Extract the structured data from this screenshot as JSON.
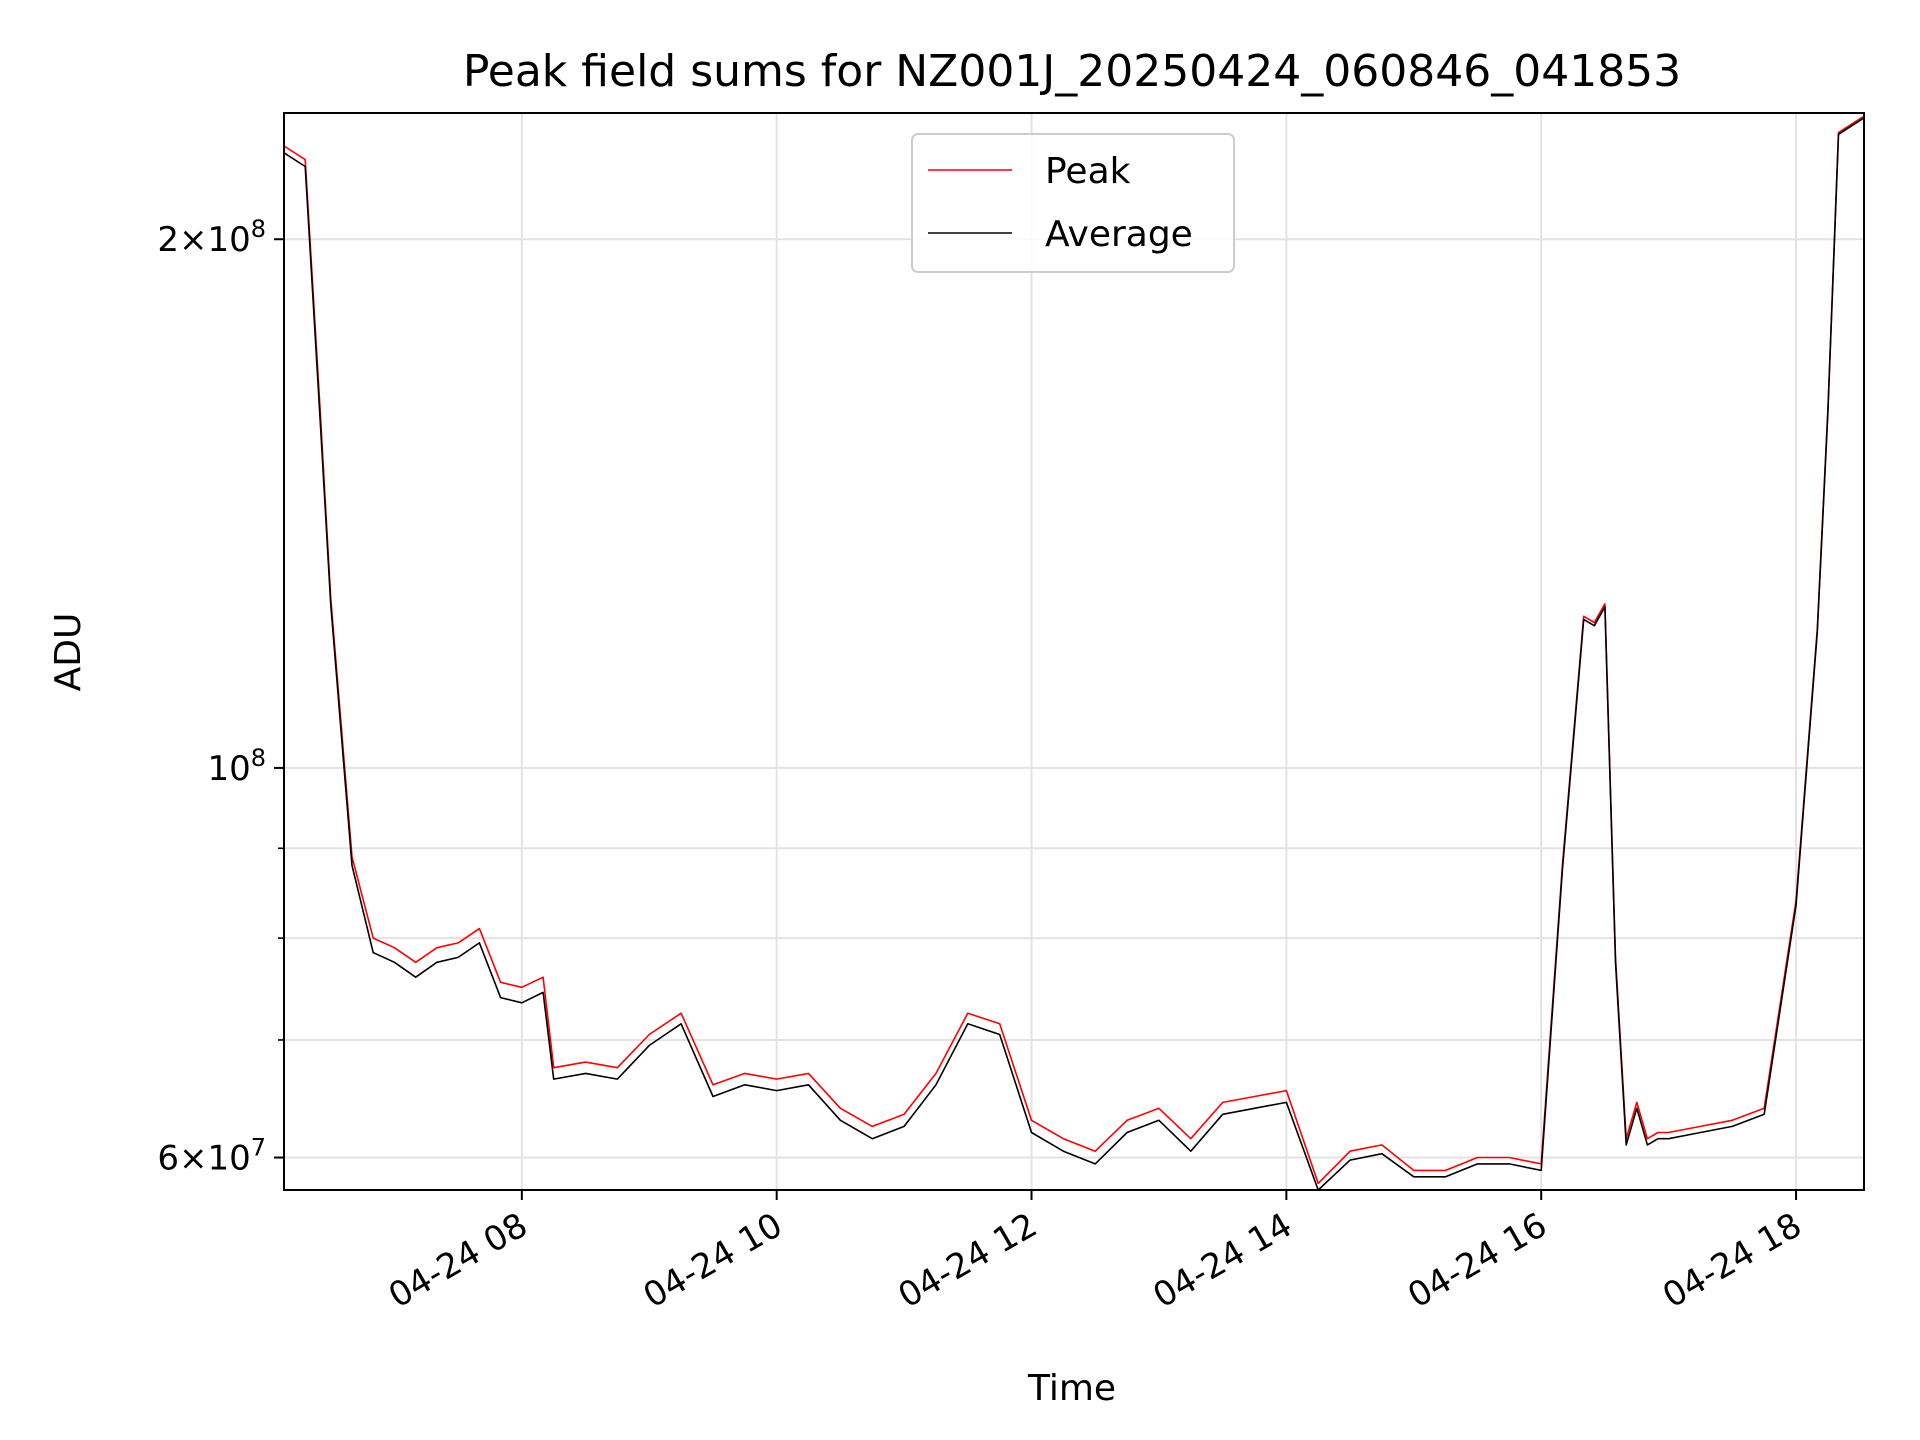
{
  "chart_data": {
    "type": "line",
    "title": "Peak field sums for NZ001J_20250424_060846_041853",
    "xlabel": "Time",
    "ylabel": "ADU",
    "y_scale": "log",
    "ylim": [
      57500000,
      236000000
    ],
    "xlim": [
      "2025-04-24 06:08",
      "2025-04-24 18:32"
    ],
    "grid": true,
    "legend_position": "top-center",
    "x_ticks": [
      {
        "t": "2025-04-24 08:00",
        "label": "04-24 08"
      },
      {
        "t": "2025-04-24 10:00",
        "label": "04-24 10"
      },
      {
        "t": "2025-04-24 12:00",
        "label": "04-24 12"
      },
      {
        "t": "2025-04-24 14:00",
        "label": "04-24 14"
      },
      {
        "t": "2025-04-24 16:00",
        "label": "04-24 16"
      },
      {
        "t": "2025-04-24 18:00",
        "label": "04-24 18"
      }
    ],
    "y_ticks": [
      {
        "v": 60000000,
        "base": "6×10",
        "exp": "7"
      },
      {
        "v": 100000000,
        "base": "10",
        "exp": "8"
      },
      {
        "v": 200000000,
        "base": "2×10",
        "exp": "8"
      }
    ],
    "y_minor_ticks": [
      70000000,
      80000000,
      90000000
    ],
    "series": [
      {
        "name": "Peak",
        "color": "#ff0000"
      },
      {
        "name": "Average",
        "color": "#000000"
      }
    ],
    "x": [
      "2025-04-24 06:08",
      "2025-04-24 06:18",
      "2025-04-24 06:25",
      "2025-04-24 06:30",
      "2025-04-24 06:40",
      "2025-04-24 06:50",
      "2025-04-24 07:00",
      "2025-04-24 07:10",
      "2025-04-24 07:20",
      "2025-04-24 07:30",
      "2025-04-24 07:40",
      "2025-04-24 07:50",
      "2025-04-24 08:00",
      "2025-04-24 08:10",
      "2025-04-24 08:15",
      "2025-04-24 08:30",
      "2025-04-24 08:45",
      "2025-04-24 09:00",
      "2025-04-24 09:15",
      "2025-04-24 09:30",
      "2025-04-24 09:45",
      "2025-04-24 10:00",
      "2025-04-24 10:15",
      "2025-04-24 10:30",
      "2025-04-24 10:45",
      "2025-04-24 11:00",
      "2025-04-24 11:15",
      "2025-04-24 11:30",
      "2025-04-24 11:45",
      "2025-04-24 12:00",
      "2025-04-24 12:15",
      "2025-04-24 12:30",
      "2025-04-24 12:45",
      "2025-04-24 13:00",
      "2025-04-24 13:15",
      "2025-04-24 13:30",
      "2025-04-24 13:45",
      "2025-04-24 14:00",
      "2025-04-24 14:15",
      "2025-04-24 14:30",
      "2025-04-24 14:45",
      "2025-04-24 15:00",
      "2025-04-24 15:15",
      "2025-04-24 15:30",
      "2025-04-24 15:45",
      "2025-04-24 16:00",
      "2025-04-24 16:10",
      "2025-04-24 16:20",
      "2025-04-24 16:25",
      "2025-04-24 16:30",
      "2025-04-24 16:35",
      "2025-04-24 16:40",
      "2025-04-24 16:45",
      "2025-04-24 16:50",
      "2025-04-24 16:55",
      "2025-04-24 17:00",
      "2025-04-24 17:15",
      "2025-04-24 17:30",
      "2025-04-24 17:45",
      "2025-04-24 18:00",
      "2025-04-24 18:10",
      "2025-04-24 18:15",
      "2025-04-24 18:20",
      "2025-04-24 18:32"
    ],
    "peak_values": [
      226000000,
      222000000,
      160000000,
      125000000,
      89000000,
      80000000,
      79000000,
      77500000,
      79000000,
      79500000,
      81000000,
      75500000,
      75000000,
      76000000,
      67500000,
      68000000,
      67500000,
      70500000,
      72500000,
      66000000,
      67000000,
      66500000,
      67000000,
      64000000,
      62500000,
      63500000,
      67000000,
      72500000,
      71500000,
      63000000,
      61500000,
      60500000,
      63000000,
      64000000,
      61500000,
      64500000,
      65000000,
      65500000,
      58000000,
      60500000,
      61000000,
      59000000,
      59000000,
      60000000,
      60000000,
      59500000,
      88000000,
      122000000,
      121000000,
      124000000,
      78000000,
      61500000,
      64500000,
      61500000,
      62000000,
      62000000,
      62500000,
      63000000,
      64000000,
      84000000,
      120000000,
      160000000,
      230000000,
      235000000
    ],
    "average_values": [
      224000000,
      220000000,
      158000000,
      124000000,
      88000000,
      78500000,
      77500000,
      76000000,
      77500000,
      78000000,
      79500000,
      74000000,
      73500000,
      74500000,
      66500000,
      67000000,
      66500000,
      69500000,
      71500000,
      65000000,
      66000000,
      65500000,
      66000000,
      63000000,
      61500000,
      62500000,
      66000000,
      71500000,
      70500000,
      62000000,
      60500000,
      59500000,
      62000000,
      63000000,
      60500000,
      63500000,
      64000000,
      64500000,
      57500000,
      59800000,
      60300000,
      58500000,
      58500000,
      59500000,
      59500000,
      59000000,
      87500000,
      121500000,
      120500000,
      123500000,
      77500000,
      61000000,
      64000000,
      61000000,
      61500000,
      61500000,
      62000000,
      62500000,
      63500000,
      83500000,
      119500000,
      159500000,
      229500000,
      234500000
    ]
  }
}
